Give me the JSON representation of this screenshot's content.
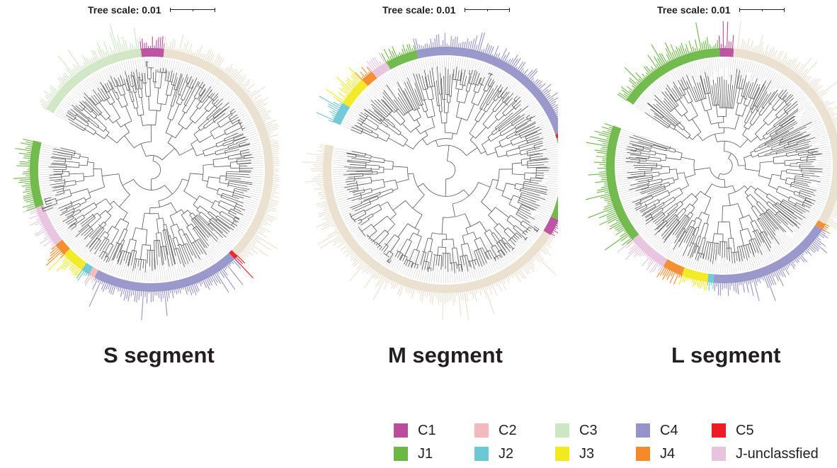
{
  "panels": [
    {
      "scale_label": "Tree scale: 0.01",
      "segment_label": "S segment",
      "gap_deg": [
        284,
        300
      ],
      "clades": [
        {
          "clade": "C3",
          "from": 300,
          "to": 355
        },
        {
          "clade": "C1",
          "from": 355,
          "to": 366
        },
        {
          "clade": "C3",
          "from": 366,
          "to": 495
        },
        {
          "clade": "C5",
          "from": 495,
          "to": 497
        },
        {
          "clade": "C4",
          "from": 497,
          "to": 568
        },
        {
          "clade": "C2",
          "from": 568,
          "to": 571
        },
        {
          "clade": "J2",
          "from": 571,
          "to": 575
        },
        {
          "clade": "J3",
          "from": 575,
          "to": 586
        },
        {
          "clade": "J4",
          "from": 586,
          "to": 592
        },
        {
          "clade": "J-unclassfied",
          "from": 592,
          "to": 612
        },
        {
          "clade": "J1",
          "from": 612,
          "to": 644
        }
      ]
    },
    {
      "scale_label": "Tree scale: 0.01",
      "segment_label": "M segment",
      "gap_deg": [
        282,
        293
      ],
      "clades": [
        {
          "clade": "J2",
          "from": 293,
          "to": 303
        },
        {
          "clade": "J3",
          "from": 303,
          "to": 317
        },
        {
          "clade": "J4",
          "from": 317,
          "to": 323
        },
        {
          "clade": "J-unclassfied",
          "from": 323,
          "to": 331
        },
        {
          "clade": "J1",
          "from": 331,
          "to": 346
        },
        {
          "clade": "C4",
          "from": 346,
          "to": 432
        },
        {
          "clade": "C5",
          "from": 432,
          "to": 434
        },
        {
          "clade": "J1",
          "from": 434,
          "to": 474
        },
        {
          "clade": "C1",
          "from": 474,
          "to": 482
        },
        {
          "clade": "C3",
          "from": 482,
          "to": 642
        }
      ]
    },
    {
      "scale_label": "Tree scale: 0.01",
      "segment_label": "L segment",
      "gap_deg": [
        290,
        304
      ],
      "clades": [
        {
          "clade": "J1",
          "from": 304,
          "to": 358
        },
        {
          "clade": "C1",
          "from": 358,
          "to": 365
        },
        {
          "clade": "C3",
          "from": 365,
          "to": 480
        },
        {
          "clade": "J4",
          "from": 480,
          "to": 483
        },
        {
          "clade": "C4",
          "from": 483,
          "to": 545
        },
        {
          "clade": "J2",
          "from": 545,
          "to": 548
        },
        {
          "clade": "J3",
          "from": 548,
          "to": 561
        },
        {
          "clade": "J4",
          "from": 561,
          "to": 571
        },
        {
          "clade": "J-unclassfied",
          "from": 571,
          "to": 591
        },
        {
          "clade": "J1",
          "from": 591,
          "to": 650
        }
      ]
    }
  ],
  "legend": [
    {
      "label": "C1",
      "color": "#b94c9d"
    },
    {
      "label": "C2",
      "color": "#f4b9bd"
    },
    {
      "label": "C3",
      "color": "#cfe6c3"
    },
    {
      "label": "C4",
      "color": "#9693c8"
    },
    {
      "label": "C5",
      "color": "#ed1c24"
    },
    {
      "label": "J1",
      "color": "#6db746"
    },
    {
      "label": "J2",
      "color": "#6cc8d5"
    },
    {
      "label": "J3",
      "color": "#f2ea1e"
    },
    {
      "label": "J4",
      "color": "#f58a2a"
    },
    {
      "label": "J-unclassfied",
      "color": "#e8c3dd"
    }
  ],
  "bg_colors": {
    "ring_tan": "#eadfce",
    "branch": "#555555"
  }
}
